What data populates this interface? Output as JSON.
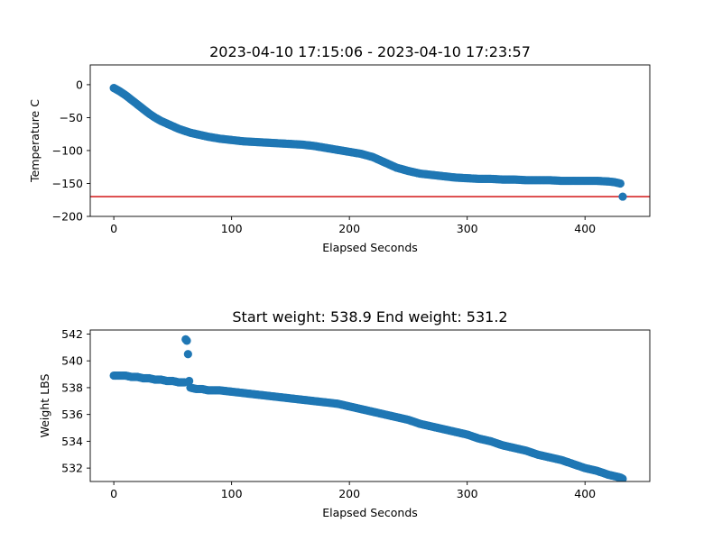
{
  "chart_data": [
    {
      "type": "scatter",
      "title": "2023-04-10 17:15:06 - 2023-04-10 17:23:57",
      "xlabel": "Elapsed Seconds",
      "ylabel": "Temperature C",
      "xlim": [
        -20,
        455
      ],
      "ylim": [
        -200,
        30
      ],
      "xticks": [
        0,
        100,
        200,
        300,
        400
      ],
      "yticks": [
        0,
        -50,
        -100,
        -150,
        -200
      ],
      "grid": false,
      "marker_color": "#1f77b4",
      "reference_line": {
        "y": -170,
        "color": "#d62728"
      },
      "x": [
        0,
        5,
        10,
        15,
        20,
        25,
        30,
        35,
        40,
        45,
        50,
        55,
        60,
        65,
        70,
        75,
        80,
        90,
        100,
        110,
        120,
        130,
        140,
        150,
        160,
        170,
        180,
        190,
        200,
        210,
        220,
        230,
        240,
        250,
        260,
        270,
        280,
        290,
        300,
        310,
        320,
        330,
        340,
        350,
        360,
        370,
        380,
        390,
        400,
        410,
        420,
        425,
        430,
        432
      ],
      "y": [
        -5,
        -10,
        -16,
        -23,
        -30,
        -37,
        -44,
        -50,
        -55,
        -59,
        -63,
        -67,
        -70,
        -73,
        -75,
        -77,
        -79,
        -82,
        -84,
        -86,
        -87,
        -88,
        -89,
        -90,
        -91,
        -93,
        -96,
        -99,
        -102,
        -105,
        -110,
        -118,
        -126,
        -131,
        -135,
        -137,
        -139,
        -141,
        -142,
        -143,
        -143,
        -144,
        -144,
        -145,
        -145,
        -145,
        -146,
        -146,
        -146,
        -146,
        -147,
        -148,
        -150,
        -170
      ]
    },
    {
      "type": "scatter",
      "title": "Start weight: 538.9 End weight: 531.2",
      "xlabel": "Elapsed Seconds",
      "ylabel": "Weight LBS",
      "xlim": [
        -20,
        455
      ],
      "ylim": [
        531,
        542.3
      ],
      "xticks": [
        0,
        100,
        200,
        300,
        400
      ],
      "yticks": [
        532,
        534,
        536,
        538,
        540,
        542
      ],
      "grid": false,
      "marker_color": "#1f77b4",
      "x": [
        0,
        5,
        10,
        15,
        20,
        25,
        30,
        35,
        40,
        45,
        50,
        55,
        60,
        61,
        62,
        63,
        64,
        65,
        70,
        75,
        80,
        90,
        100,
        110,
        120,
        130,
        140,
        150,
        160,
        170,
        180,
        190,
        200,
        210,
        220,
        230,
        240,
        250,
        260,
        270,
        280,
        290,
        300,
        310,
        320,
        330,
        340,
        350,
        360,
        370,
        380,
        390,
        400,
        410,
        420,
        430,
        432
      ],
      "y": [
        538.9,
        538.9,
        538.9,
        538.8,
        538.8,
        538.7,
        538.7,
        538.6,
        538.6,
        538.5,
        538.5,
        538.4,
        538.4,
        541.6,
        541.5,
        540.5,
        538.5,
        538.0,
        537.9,
        537.9,
        537.8,
        537.8,
        537.7,
        537.6,
        537.5,
        537.4,
        537.3,
        537.2,
        537.1,
        537.0,
        536.9,
        536.8,
        536.6,
        536.4,
        536.2,
        536.0,
        535.8,
        535.6,
        535.3,
        535.1,
        534.9,
        534.7,
        534.5,
        534.2,
        534.0,
        533.7,
        533.5,
        533.3,
        533.0,
        532.8,
        532.6,
        532.3,
        532.0,
        531.8,
        531.5,
        531.3,
        531.2
      ]
    }
  ]
}
